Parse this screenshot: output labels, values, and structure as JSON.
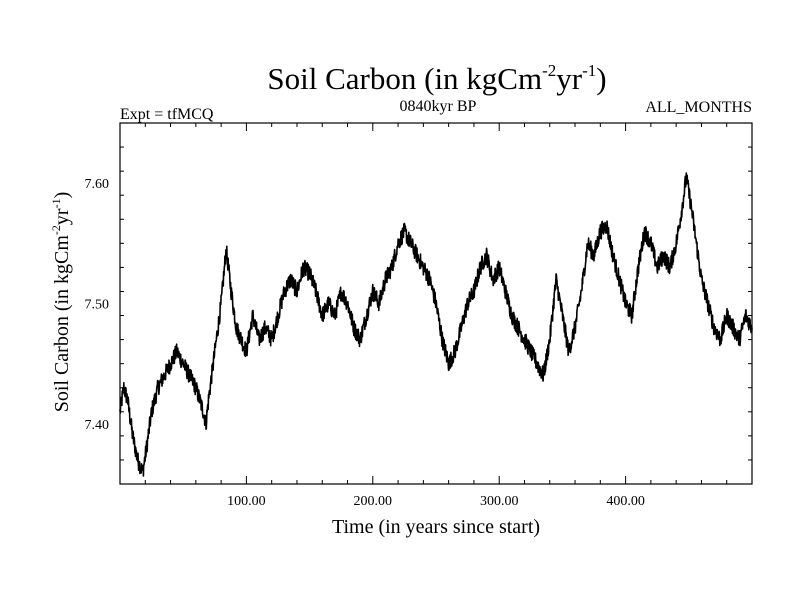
{
  "chart_data": {
    "type": "line",
    "title": {
      "main": "Soil Carbon (in kgCm",
      "exp1": "-2",
      "mid": "yr",
      "exp2": "-1",
      "close": ")"
    },
    "subtitle_left": "Expt = tfMCQ",
    "subtitle_center": "0840kyr BP",
    "subtitle_right": "ALL_MONTHS",
    "xlabel": "Time (in years since start)",
    "ylabel": {
      "main": "Soil Carbon (in kgCm",
      "exp1": "-2",
      "mid": "yr",
      "exp2": "-1",
      "close": ")"
    },
    "xlim": [
      0,
      500
    ],
    "ylim": [
      7.35,
      7.65
    ],
    "xticks": [
      100,
      200,
      300,
      400
    ],
    "xtick_labels": [
      "100.00",
      "200.00",
      "300.00",
      "400.00"
    ],
    "yticks": [
      7.4,
      7.5,
      7.6
    ],
    "ytick_labels": [
      "7.40",
      "7.50",
      "7.60"
    ],
    "grid": false,
    "series": [
      {
        "name": "Soil Carbon",
        "color": "#000000",
        "x": [
          0,
          3,
          6,
          10,
          14,
          18,
          21,
          25,
          30,
          35,
          40,
          45,
          50,
          55,
          60,
          63,
          66,
          68,
          70,
          75,
          80,
          84,
          88,
          92,
          96,
          100,
          105,
          110,
          115,
          120,
          125,
          130,
          135,
          140,
          145,
          150,
          155,
          160,
          165,
          170,
          175,
          180,
          185,
          190,
          195,
          200,
          205,
          210,
          215,
          220,
          225,
          230,
          235,
          240,
          245,
          250,
          255,
          260,
          265,
          270,
          275,
          280,
          285,
          290,
          295,
          300,
          305,
          310,
          315,
          320,
          325,
          330,
          335,
          340,
          345,
          350,
          355,
          360,
          365,
          370,
          375,
          380,
          385,
          390,
          395,
          400,
          405,
          410,
          415,
          420,
          425,
          430,
          435,
          440,
          444,
          448,
          452,
          456,
          460,
          465,
          470,
          475,
          480,
          485,
          490,
          495,
          500
        ],
        "y": [
          7.41,
          7.43,
          7.42,
          7.39,
          7.37,
          7.36,
          7.38,
          7.41,
          7.43,
          7.44,
          7.45,
          7.46,
          7.45,
          7.44,
          7.43,
          7.42,
          7.41,
          7.4,
          7.42,
          7.46,
          7.5,
          7.545,
          7.51,
          7.48,
          7.47,
          7.46,
          7.49,
          7.47,
          7.48,
          7.47,
          7.49,
          7.51,
          7.52,
          7.51,
          7.53,
          7.525,
          7.51,
          7.49,
          7.5,
          7.49,
          7.51,
          7.5,
          7.48,
          7.47,
          7.49,
          7.51,
          7.5,
          7.52,
          7.53,
          7.55,
          7.56,
          7.55,
          7.54,
          7.53,
          7.52,
          7.5,
          7.47,
          7.45,
          7.46,
          7.48,
          7.5,
          7.51,
          7.53,
          7.54,
          7.52,
          7.53,
          7.51,
          7.49,
          7.48,
          7.47,
          7.46,
          7.45,
          7.44,
          7.47,
          7.52,
          7.49,
          7.46,
          7.48,
          7.51,
          7.55,
          7.54,
          7.56,
          7.565,
          7.54,
          7.52,
          7.5,
          7.49,
          7.53,
          7.56,
          7.55,
          7.53,
          7.54,
          7.53,
          7.55,
          7.575,
          7.605,
          7.58,
          7.55,
          7.52,
          7.5,
          7.48,
          7.47,
          7.49,
          7.48,
          7.47,
          7.49,
          7.48
        ]
      }
    ]
  }
}
